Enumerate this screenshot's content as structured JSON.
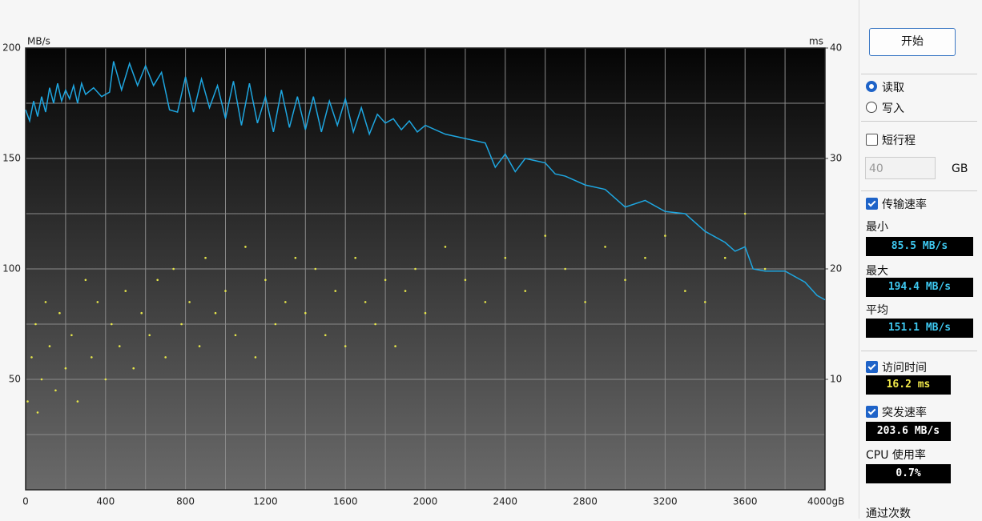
{
  "chart_data": {
    "type": "line",
    "y_unit": "MB/s",
    "y2_unit": "ms",
    "xlim": [
      0,
      4000
    ],
    "xticks": [
      0,
      400,
      800,
      1200,
      1600,
      2000,
      2400,
      2800,
      3200,
      3600,
      {
        "value": 4000,
        "label": "4000gB"
      }
    ],
    "x_minor_ticks": [
      200,
      600,
      1000,
      1400,
      1800,
      2200,
      2600,
      3000,
      3400,
      3800
    ],
    "ylim": [
      0,
      200
    ],
    "yticks": [
      50,
      100,
      150,
      200
    ],
    "y_minor_ticks": [
      25,
      75,
      125,
      175
    ],
    "y2lim": [
      0,
      40
    ],
    "y2ticks": [
      10,
      20,
      30,
      40
    ],
    "grid": true,
    "series": [
      {
        "type": "line",
        "color": "#1ea6e0",
        "x": [
          0,
          20,
          40,
          60,
          80,
          100,
          120,
          140,
          160,
          180,
          200,
          220,
          240,
          260,
          280,
          300,
          340,
          380,
          420,
          440,
          480,
          520,
          560,
          600,
          640,
          680,
          720,
          760,
          800,
          840,
          880,
          920,
          960,
          1000,
          1040,
          1080,
          1120,
          1160,
          1200,
          1240,
          1280,
          1320,
          1360,
          1400,
          1440,
          1480,
          1520,
          1560,
          1600,
          1640,
          1680,
          1720,
          1760,
          1800,
          1840,
          1880,
          1920,
          1960,
          2000,
          2100,
          2200,
          2300,
          2350,
          2400,
          2450,
          2500,
          2550,
          2600,
          2650,
          2700,
          2800,
          2900,
          3000,
          3100,
          3200,
          3300,
          3400,
          3500,
          3550,
          3600,
          3640,
          3700,
          3800,
          3900,
          3960,
          4000
        ],
        "values": [
          172,
          167,
          176,
          169,
          178,
          171,
          182,
          175,
          184,
          176,
          181,
          177,
          183,
          175,
          184,
          179,
          182,
          178,
          180,
          194,
          181,
          193,
          183,
          192,
          183,
          189,
          172,
          171,
          187,
          171,
          186,
          173,
          183,
          168,
          185,
          165,
          184,
          166,
          178,
          162,
          181,
          164,
          178,
          163,
          178,
          162,
          176,
          165,
          177,
          162,
          173,
          161,
          170,
          166,
          168,
          163,
          167,
          162,
          165,
          161,
          159,
          157,
          146,
          152,
          144,
          150,
          149,
          148,
          143,
          142,
          138,
          136,
          128,
          131,
          126,
          125,
          117,
          112,
          108,
          110,
          100,
          99,
          99,
          94,
          88,
          86
        ]
      },
      {
        "type": "scatter",
        "axis": "y2",
        "color": "#e8e84a",
        "x": [
          10,
          30,
          50,
          60,
          80,
          100,
          120,
          150,
          170,
          200,
          230,
          260,
          300,
          330,
          360,
          400,
          430,
          470,
          500,
          540,
          580,
          620,
          660,
          700,
          740,
          780,
          820,
          870,
          900,
          950,
          1000,
          1050,
          1100,
          1150,
          1200,
          1250,
          1300,
          1350,
          1400,
          1450,
          1500,
          1550,
          1600,
          1650,
          1700,
          1750,
          1800,
          1850,
          1900,
          1950,
          2000,
          2100,
          2200,
          2300,
          2400,
          2500,
          2600,
          2700,
          2800,
          2900,
          3000,
          3100,
          3200,
          3300,
          3400,
          3500,
          3600,
          3700
        ],
        "values": [
          8,
          12,
          15,
          7,
          10,
          17,
          13,
          9,
          16,
          11,
          14,
          8,
          19,
          12,
          17,
          10,
          15,
          13,
          18,
          11,
          16,
          14,
          19,
          12,
          20,
          15,
          17,
          13,
          21,
          16,
          18,
          14,
          22,
          12,
          19,
          15,
          17,
          21,
          16,
          20,
          14,
          18,
          13,
          21,
          17,
          15,
          19,
          13,
          18,
          20,
          16,
          22,
          19,
          17,
          21,
          18,
          23,
          20,
          17,
          22,
          19,
          21,
          23,
          18,
          17,
          21,
          25,
          20
        ]
      }
    ]
  },
  "panel": {
    "start_button": "开始",
    "read": {
      "label": "读取",
      "checked": true
    },
    "write": {
      "label": "写入",
      "checked": false
    },
    "short_stroke": {
      "label": "短行程",
      "checked": false
    },
    "stroke_size": "40",
    "stroke_unit": "GB",
    "transfer_rate": {
      "label": "传输速率",
      "checked": true
    },
    "min_label": "最小",
    "min_value": "85.5 MB/s",
    "max_label": "最大",
    "max_value": "194.4 MB/s",
    "avg_label": "平均",
    "avg_value": "151.1 MB/s",
    "access_time": {
      "label": "访问时间",
      "checked": true
    },
    "access_value": "16.2 ms",
    "burst_rate": {
      "label": "突发速率",
      "checked": true
    },
    "burst_value": "203.6 MB/s",
    "cpu_label": "CPU 使用率",
    "cpu_value": "0.7%",
    "passes_label": "通过次数"
  }
}
